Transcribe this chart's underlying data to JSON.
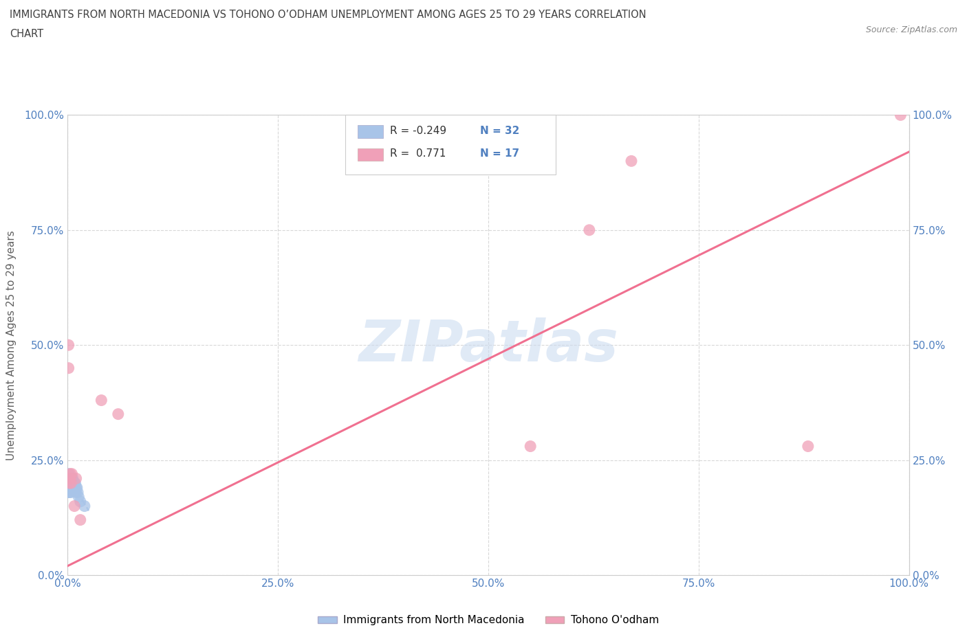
{
  "title_line1": "IMMIGRANTS FROM NORTH MACEDONIA VS TOHONO O’ODHAM UNEMPLOYMENT AMONG AGES 25 TO 29 YEARS CORRELATION",
  "title_line2": "CHART",
  "source_text": "Source: ZipAtlas.com",
  "ylabel": "Unemployment Among Ages 25 to 29 years",
  "xlim": [
    0.0,
    1.0
  ],
  "ylim": [
    0.0,
    1.0
  ],
  "xtick_labels": [
    "0.0%",
    "",
    "",
    "",
    "25.0%",
    "",
    "",
    "",
    "50.0%",
    "",
    "",
    "",
    "75.0%",
    "",
    "",
    "",
    "100.0%"
  ],
  "xtick_positions": [
    0.0,
    0.0625,
    0.125,
    0.1875,
    0.25,
    0.3125,
    0.375,
    0.4375,
    0.5,
    0.5625,
    0.625,
    0.6875,
    0.75,
    0.8125,
    0.875,
    0.9375,
    1.0
  ],
  "ytick_labels": [
    "0.0%",
    "25.0%",
    "50.0%",
    "75.0%",
    "100.0%"
  ],
  "ytick_positions": [
    0.0,
    0.25,
    0.5,
    0.75,
    1.0
  ],
  "right_ytick_labels": [
    "0.0%",
    "25.0%",
    "50.0%",
    "75.0%",
    "100.0%"
  ],
  "right_ytick_positions": [
    0.0,
    0.25,
    0.5,
    0.75,
    1.0
  ],
  "blue_scatter_x": [
    0.001,
    0.001,
    0.001,
    0.001,
    0.001,
    0.002,
    0.002,
    0.002,
    0.002,
    0.003,
    0.003,
    0.003,
    0.004,
    0.004,
    0.004,
    0.005,
    0.005,
    0.005,
    0.006,
    0.006,
    0.007,
    0.007,
    0.008,
    0.008,
    0.009,
    0.01,
    0.01,
    0.011,
    0.012,
    0.013,
    0.015,
    0.02
  ],
  "blue_scatter_y": [
    0.19,
    0.2,
    0.21,
    0.18,
    0.22,
    0.2,
    0.19,
    0.21,
    0.18,
    0.2,
    0.19,
    0.21,
    0.2,
    0.19,
    0.18,
    0.21,
    0.2,
    0.19,
    0.2,
    0.21,
    0.19,
    0.2,
    0.2,
    0.19,
    0.2,
    0.19,
    0.18,
    0.19,
    0.18,
    0.17,
    0.16,
    0.15
  ],
  "pink_scatter_x": [
    0.001,
    0.001,
    0.002,
    0.003,
    0.003,
    0.004,
    0.005,
    0.008,
    0.01,
    0.015,
    0.04,
    0.06,
    0.55,
    0.62,
    0.67,
    0.88,
    0.99
  ],
  "pink_scatter_y": [
    0.5,
    0.45,
    0.2,
    0.21,
    0.22,
    0.2,
    0.22,
    0.15,
    0.21,
    0.12,
    0.38,
    0.35,
    0.28,
    0.75,
    0.9,
    0.28,
    1.0
  ],
  "blue_r": -0.249,
  "blue_n": 32,
  "pink_r": 0.771,
  "pink_n": 17,
  "blue_color": "#a8c4e8",
  "pink_color": "#f0a0b8",
  "blue_line_color": "#b8cce8",
  "pink_line_color": "#f07090",
  "blue_trendline_x": [
    0.0,
    0.025
  ],
  "blue_trendline_y": [
    0.215,
    0.14
  ],
  "pink_trendline_x": [
    0.0,
    1.0
  ],
  "pink_trendline_y": [
    0.02,
    0.92
  ],
  "watermark_text": "ZIPatlas",
  "watermark_color": "#ccdcf0",
  "background_color": "#ffffff",
  "grid_color": "#d8d8d8",
  "title_color": "#404040",
  "axis_label_color": "#606060",
  "tick_label_color": "#5080c0",
  "source_color": "#888888"
}
